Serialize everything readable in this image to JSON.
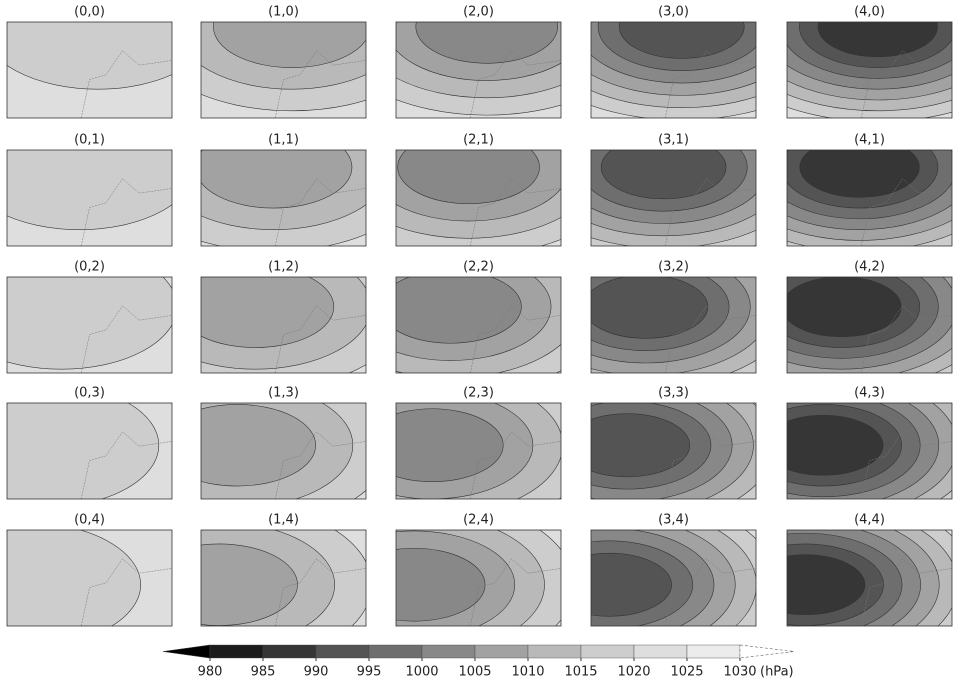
{
  "chart_data": {
    "type": "map-grid",
    "panels": [
      "(0,0)",
      "(1,0)",
      "(2,0)",
      "(3,0)",
      "(4,0)",
      "(0,1)",
      "(1,1)",
      "(2,1)",
      "(3,1)",
      "(4,1)",
      "(0,2)",
      "(1,2)",
      "(2,2)",
      "(3,2)",
      "(4,2)",
      "(0,3)",
      "(1,3)",
      "(2,3)",
      "(3,3)",
      "(4,3)",
      "(0,4)",
      "(1,4)",
      "(2,4)",
      "(3,4)",
      "(4,4)"
    ],
    "colorbar": {
      "ticks": [
        980,
        985,
        990,
        995,
        1000,
        1005,
        1010,
        1015,
        1020,
        1025,
        1030
      ],
      "colors": [
        "#000000",
        "#1c1c1c",
        "#363636",
        "#545454",
        "#6e6e6e",
        "#888888",
        "#a2a2a2",
        "#b9b9b9",
        "#cdcdcd",
        "#dedede",
        "#ececec",
        "#ffffff"
      ],
      "unit": "(hPa)"
    }
  }
}
